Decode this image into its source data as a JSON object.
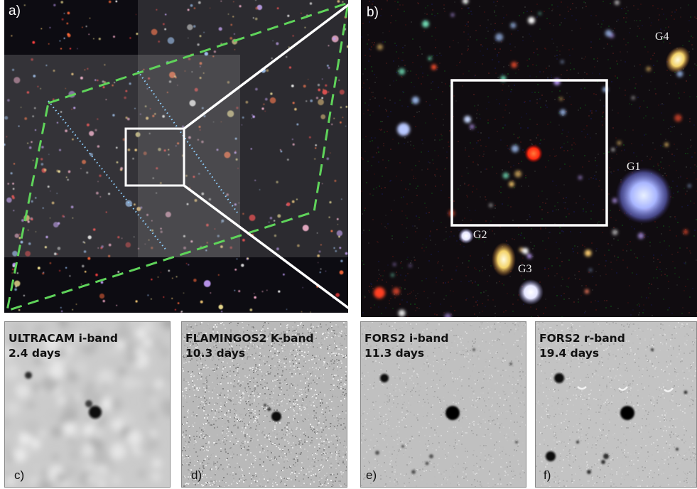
{
  "panels": {
    "a": {
      "label": "a)"
    },
    "b": {
      "label": "b)",
      "galaxies": [
        {
          "name": "G1"
        },
        {
          "name": "G2"
        },
        {
          "name": "G3"
        },
        {
          "name": "G4"
        }
      ]
    },
    "c": {
      "label": "c)",
      "instrument": "ULTRACAM i-band",
      "epoch": "2.4 days"
    },
    "d": {
      "label": "d)",
      "instrument": "FLAMINGOS2 K-band",
      "epoch": "10.3 days"
    },
    "e": {
      "label": "e)",
      "instrument": "FORS2 i-band",
      "epoch": "11.3 days"
    },
    "f": {
      "label": "f)",
      "instrument": "FORS2 r-band",
      "epoch": "19.4 days"
    }
  },
  "colors": {
    "sky_dark": "#0b0b10",
    "ccd_overlay": "#8a8a8a",
    "dashed_footprint": "#5fd35a",
    "dotted_footprint": "#8fd0ff",
    "zoom_box": "#ffffff",
    "transient": "#ff3a1a",
    "grayscale_bg": "#c8c8c8"
  }
}
